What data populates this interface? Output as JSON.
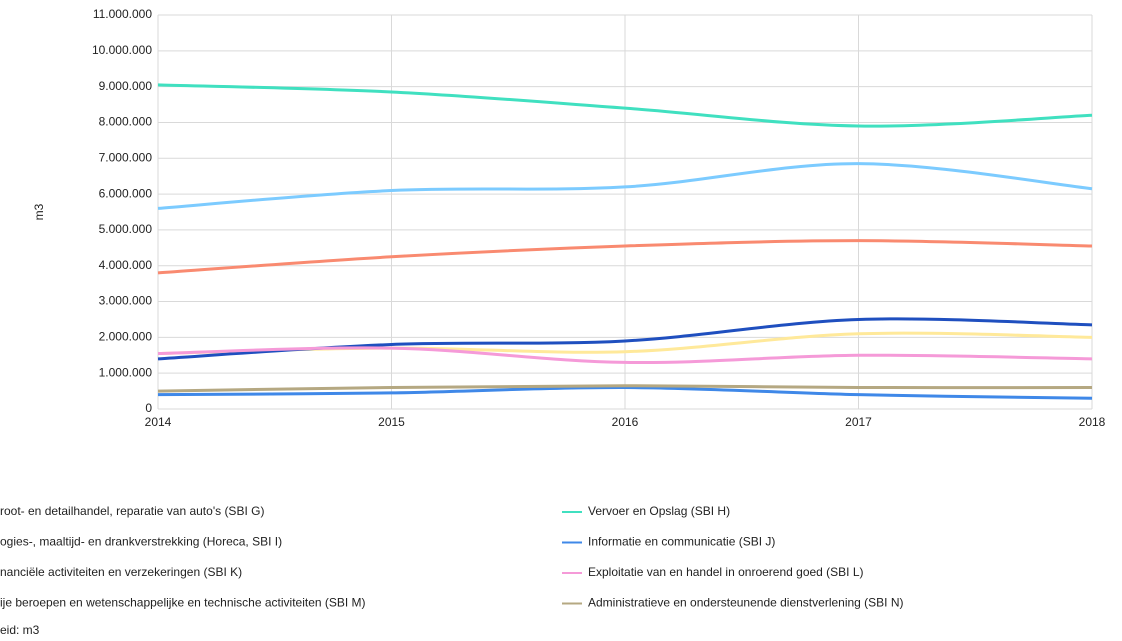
{
  "chart_data": {
    "type": "line",
    "y_label": "m3",
    "x": [
      2014,
      2015,
      2016,
      2017,
      2018
    ],
    "xlim": [
      2014,
      2018
    ],
    "xticks": [
      2014,
      2015,
      2016,
      2017,
      2018
    ],
    "ylim": [
      0,
      11000000
    ],
    "yticks": [
      0,
      {
        "value": 1000000,
        "label": "1.000.000"
      },
      {
        "value": 2000000,
        "label": "2.000.000"
      },
      {
        "value": 3000000,
        "label": "3.000.000"
      },
      {
        "value": 4000000,
        "label": "4.000.000"
      },
      {
        "value": 5000000,
        "label": "5.000.000"
      },
      {
        "value": 6000000,
        "label": "6.000.000"
      },
      {
        "value": 7000000,
        "label": "7.000.000"
      },
      {
        "value": 8000000,
        "label": "8.000.000"
      },
      {
        "value": 9000000,
        "label": "9.000.000"
      },
      {
        "value": 10000000,
        "label": "10.000.000"
      },
      {
        "value": 11000000,
        "label": "11.000.000"
      }
    ],
    "grid": true,
    "series": [
      {
        "name": "root- en detailhandel, reparatie van auto's (SBI G)",
        "color": "#7ccbff",
        "values": [
          5600000,
          6100000,
          6200000,
          6850000,
          6150000
        ]
      },
      {
        "name": "Vervoer en Opslag (SBI H)",
        "color": "#40e0c0",
        "values": [
          9050000,
          8850000,
          8400000,
          7900000,
          8200000
        ]
      },
      {
        "name": "ogies-, maaltijd- en drankverstrekking (Horeca, SBI I)",
        "color": "#ffe99a",
        "values": [
          1550000,
          1700000,
          1600000,
          2100000,
          2000000
        ]
      },
      {
        "name": "Informatie en communicatie (SBI J)",
        "color": "#3f88e8",
        "values": [
          400000,
          450000,
          600000,
          400000,
          300000
        ]
      },
      {
        "name": "nanciële activiteiten en verzekeringen (SBI K)",
        "color": "#1f4fbf",
        "values": [
          1400000,
          1800000,
          1900000,
          2500000,
          2350000
        ]
      },
      {
        "name": "Exploitatie van en handel in onroerend goed (SBI L)",
        "color": "#f59ad8",
        "values": [
          1550000,
          1700000,
          1300000,
          1500000,
          1400000
        ]
      },
      {
        "name": "ije beroepen en wetenschappelijke en technische activiteiten (SBI M)",
        "color": "#f98a70",
        "values": [
          3800000,
          4250000,
          4550000,
          4700000,
          4550000
        ]
      },
      {
        "name": "Administratieve en ondersteunende dienstverlening (SBI N)",
        "color": "#b5a882",
        "values": [
          500000,
          600000,
          650000,
          600000,
          600000
        ]
      }
    ],
    "note": "eid: m3"
  }
}
